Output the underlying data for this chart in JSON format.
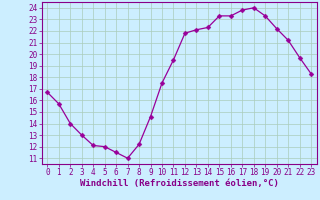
{
  "x": [
    0,
    1,
    2,
    3,
    4,
    5,
    6,
    7,
    8,
    9,
    10,
    11,
    12,
    13,
    14,
    15,
    16,
    17,
    18,
    19,
    20,
    21,
    22,
    23
  ],
  "y": [
    16.7,
    15.7,
    14.0,
    13.0,
    12.1,
    12.0,
    11.5,
    11.0,
    12.2,
    14.6,
    17.5,
    19.5,
    21.8,
    22.1,
    22.3,
    23.3,
    23.3,
    23.8,
    24.0,
    23.3,
    22.2,
    21.2,
    19.7,
    18.3
  ],
  "line_color": "#990099",
  "marker": "D",
  "marker_size": 2.5,
  "bg_color": "#cceeff",
  "grid_color": "#aaccbb",
  "xlabel": "Windchill (Refroidissement éolien,°C)",
  "ylabel_ticks": [
    11,
    12,
    13,
    14,
    15,
    16,
    17,
    18,
    19,
    20,
    21,
    22,
    23,
    24
  ],
  "xlim": [
    -0.5,
    23.5
  ],
  "ylim": [
    10.5,
    24.5
  ],
  "xlabel_fontsize": 6.5,
  "tick_fontsize": 5.5,
  "axis_label_color": "#880088",
  "tick_color": "#880088",
  "spine_color": "#880088",
  "fig_width": 3.2,
  "fig_height": 2.0,
  "dpi": 100
}
